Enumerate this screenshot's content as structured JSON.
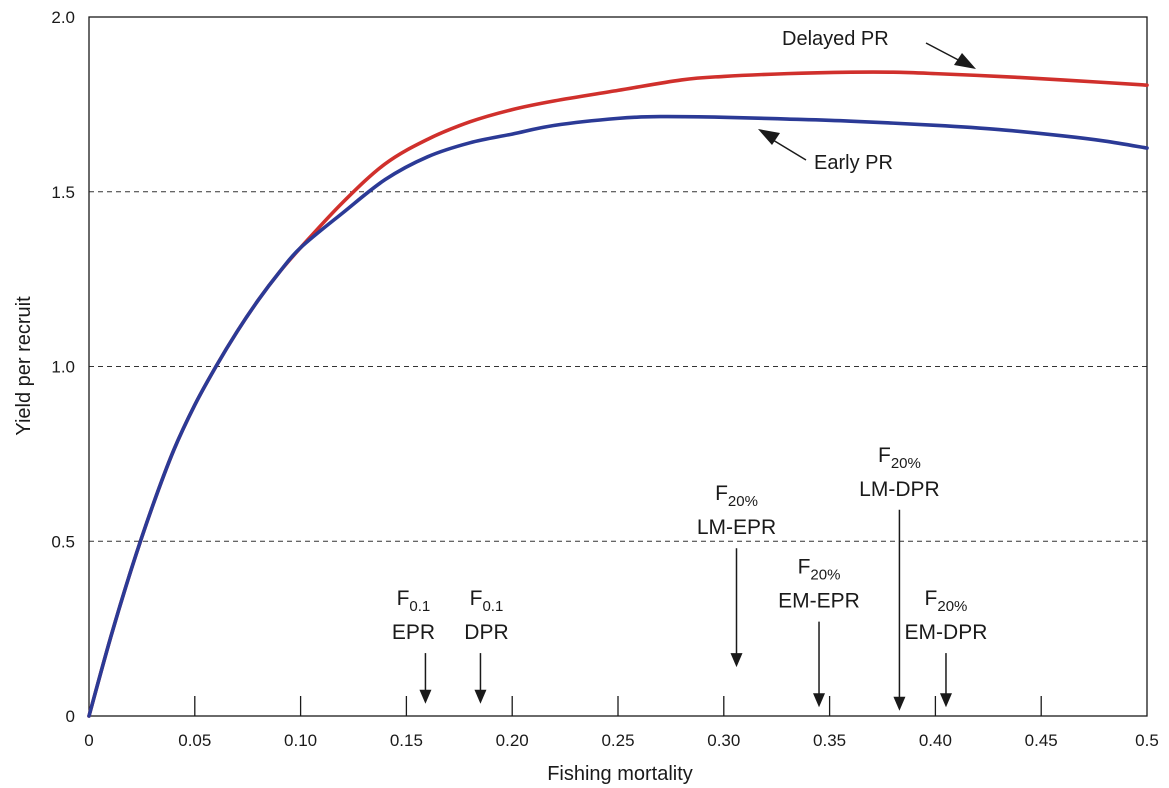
{
  "chart_data": {
    "type": "line",
    "title": "",
    "xlabel": "Fishing mortality",
    "ylabel": "Yield per recruit",
    "xlim": [
      0,
      0.5
    ],
    "ylim": [
      0,
      2.0
    ],
    "x_ticks": [
      "0",
      "0.05",
      "0.10",
      "0.15",
      "0.20",
      "0.25",
      "0.30",
      "0.35",
      "0.40",
      "0.45",
      "0.5"
    ],
    "y_ticks": [
      "0",
      "0.5",
      "1.0",
      "1.5",
      "2.0"
    ],
    "grid": "dashed horizontal at 0.5, 1.0, 1.5",
    "legend": "none (inline labels with arrows)",
    "series": [
      {
        "name": "Delayed PR",
        "color": "#d0302c",
        "x": [
          0,
          0.01,
          0.02,
          0.03,
          0.04,
          0.05,
          0.06,
          0.07,
          0.08,
          0.09,
          0.1,
          0.12,
          0.14,
          0.16,
          0.18,
          0.2,
          0.22,
          0.25,
          0.28,
          0.3,
          0.33,
          0.36,
          0.38,
          0.4,
          0.43,
          0.46,
          0.5
        ],
        "y": [
          0,
          0.22,
          0.42,
          0.6,
          0.76,
          0.89,
          1.0,
          1.1,
          1.19,
          1.27,
          1.34,
          1.47,
          1.58,
          1.65,
          1.7,
          1.735,
          1.76,
          1.79,
          1.82,
          1.83,
          1.838,
          1.842,
          1.842,
          1.838,
          1.83,
          1.82,
          1.805
        ]
      },
      {
        "name": "Early PR",
        "color": "#2b3a96",
        "x": [
          0,
          0.01,
          0.02,
          0.03,
          0.04,
          0.05,
          0.06,
          0.07,
          0.08,
          0.09,
          0.1,
          0.12,
          0.14,
          0.16,
          0.18,
          0.2,
          0.22,
          0.25,
          0.27,
          0.3,
          0.33,
          0.36,
          0.4,
          0.43,
          0.46,
          0.48,
          0.5
        ],
        "y": [
          0,
          0.22,
          0.42,
          0.6,
          0.76,
          0.89,
          1.0,
          1.1,
          1.19,
          1.27,
          1.34,
          1.44,
          1.535,
          1.6,
          1.64,
          1.665,
          1.69,
          1.71,
          1.715,
          1.713,
          1.708,
          1.702,
          1.69,
          1.678,
          1.66,
          1.645,
          1.625
        ]
      }
    ],
    "annotations": [
      {
        "main": "F",
        "sub": "0.1",
        "line2": "EPR",
        "x": 0.159,
        "arrow_top": 0.18,
        "arrow_bottom": 0.035
      },
      {
        "main": "F",
        "sub": "0.1",
        "line2": "DPR",
        "x": 0.185,
        "arrow_top": 0.18,
        "arrow_bottom": 0.035
      },
      {
        "main": "F",
        "sub": "20%",
        "line2": "LM-EPR",
        "x": 0.306,
        "arrow_top": 0.48,
        "arrow_bottom": 0.14
      },
      {
        "main": "F",
        "sub": "20%",
        "line2": "EM-EPR",
        "x": 0.345,
        "arrow_top": 0.27,
        "arrow_bottom": 0.025
      },
      {
        "main": "F",
        "sub": "20%",
        "line2": "LM-DPR",
        "x": 0.383,
        "arrow_top": 0.59,
        "arrow_bottom": 0.015
      },
      {
        "main": "F",
        "sub": "20%",
        "line2": "EM-DPR",
        "x": 0.405,
        "arrow_top": 0.18,
        "arrow_bottom": 0.025
      }
    ]
  }
}
